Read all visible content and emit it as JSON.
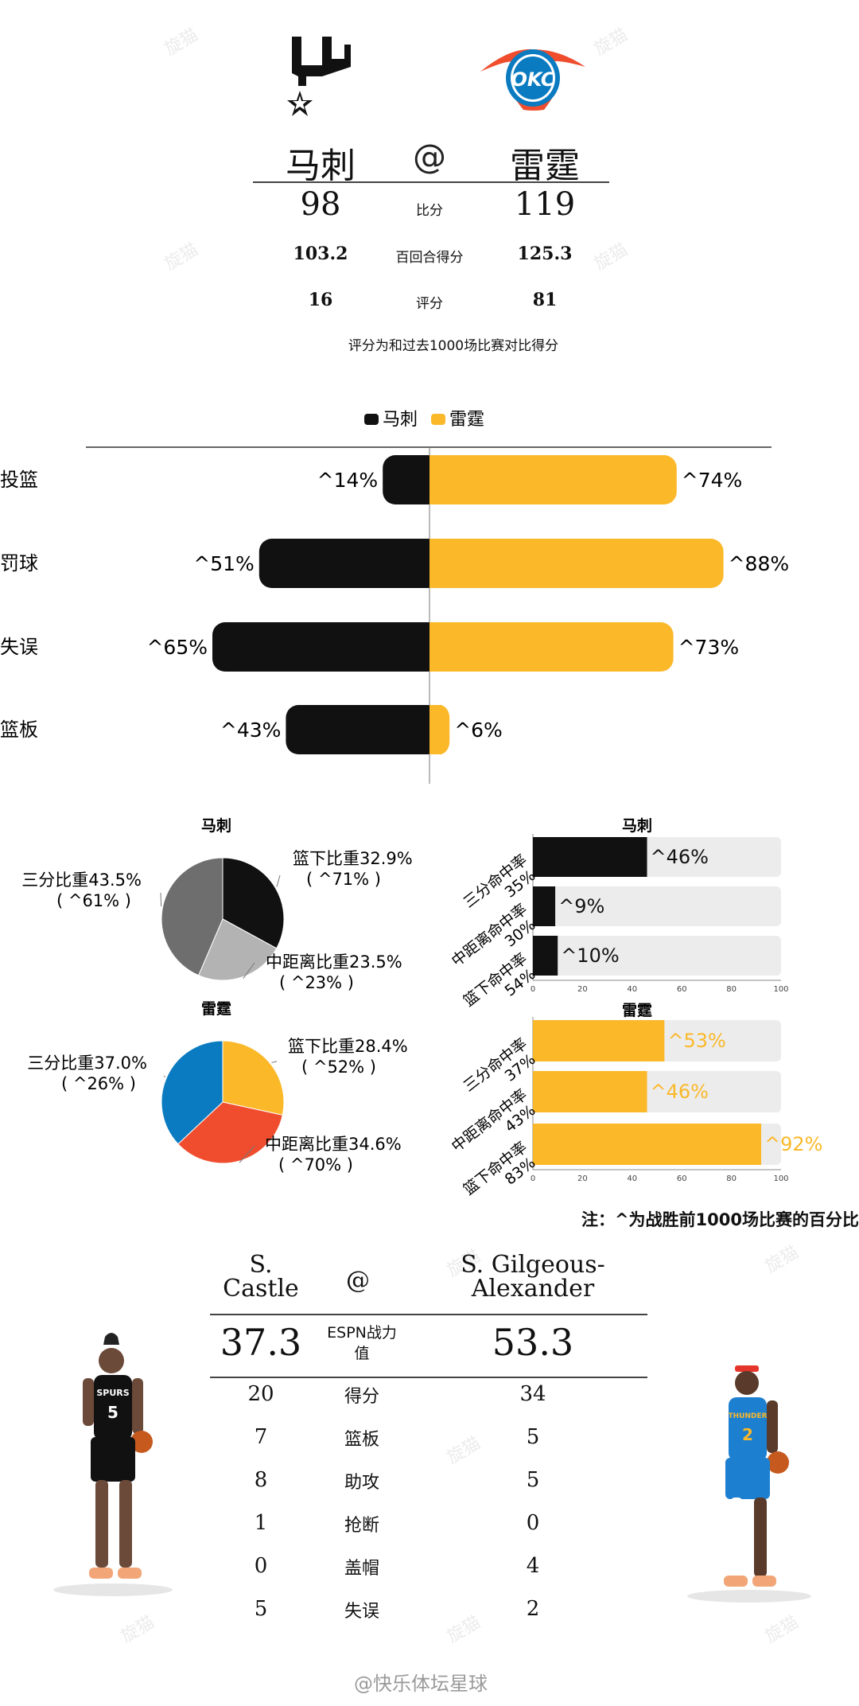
{
  "watermark": "旋猫",
  "header": {
    "team_a": "马刺",
    "team_b": "雷霆",
    "at": "@",
    "rows": [
      {
        "label": "比分",
        "a": "98",
        "b": "119"
      },
      {
        "label": "百回合得分",
        "a": "103.2",
        "b": "125.3"
      },
      {
        "label": "评分",
        "a": "16",
        "b": "81"
      }
    ],
    "note": "评分为和过去1000场比赛对比得分"
  },
  "colors": {
    "spurs": "#111111",
    "thunder": "#fbb829",
    "pie_three": "#6e6e6e",
    "pie_mid_spurs": "#b3b3b3",
    "okc_blue": "#0a7bc1",
    "okc_orange": "#ef4d2e",
    "track": "#ececec"
  },
  "pct_marker": "^",
  "chart_data": [
    {
      "type": "bar",
      "legend": [
        "马刺",
        "雷霆"
      ],
      "categories": [
        "投篮",
        "罚球",
        "失误",
        "篮板"
      ],
      "series": [
        {
          "name": "马刺",
          "values": [
            14,
            51,
            65,
            43
          ]
        },
        {
          "name": "雷霆",
          "values": [
            74,
            88,
            73,
            6
          ]
        }
      ],
      "labels_a": [
        "14%",
        "51%",
        "65%",
        "43%"
      ],
      "labels_b": [
        "74%",
        "88%",
        "73%",
        "6%"
      ]
    },
    {
      "type": "pie",
      "title": "马刺",
      "slices": [
        {
          "name": "篮下比重",
          "value": 32.9,
          "label": "篮下比重32.9%",
          "sub": "71%"
        },
        {
          "name": "中距离比重",
          "value": 23.5,
          "label": "中距离比重23.5%",
          "sub": "23%"
        },
        {
          "name": "三分比重",
          "value": 43.5,
          "label": "三分比重43.5%",
          "sub": "61%"
        }
      ]
    },
    {
      "type": "pie",
      "title": "雷霆",
      "slices": [
        {
          "name": "篮下比重",
          "value": 28.4,
          "label": "篮下比重28.4%",
          "sub": "52%"
        },
        {
          "name": "中距离比重",
          "value": 34.6,
          "label": "中距离比重34.6%",
          "sub": "70%"
        },
        {
          "name": "三分比重",
          "value": 37.0,
          "label": "三分比重37.0%",
          "sub": "26%"
        }
      ]
    },
    {
      "type": "bar",
      "title": "马刺",
      "categories": [
        "三分命中率",
        "中距离命中率",
        "篮下命中率"
      ],
      "rates": [
        "35%",
        "30%",
        "54%"
      ],
      "values": [
        46,
        9,
        10
      ],
      "labels": [
        "46%",
        "9%",
        "10%"
      ],
      "xlim": [
        0,
        100
      ],
      "xticks": [
        "0",
        "20",
        "40",
        "60",
        "80",
        "100"
      ]
    },
    {
      "type": "bar",
      "title": "雷霆",
      "categories": [
        "三分命中率",
        "中距离命中率",
        "篮下命中率"
      ],
      "rates": [
        "37%",
        "43%",
        "83%"
      ],
      "values": [
        53,
        46,
        92
      ],
      "labels": [
        "53%",
        "46%",
        "92%"
      ],
      "xlim": [
        0,
        100
      ],
      "xticks": [
        "0",
        "20",
        "40",
        "60",
        "80",
        "100"
      ]
    }
  ],
  "footnote": "注：^为战胜前1000场比赛的百分比",
  "players": {
    "a_name_line1": "S.",
    "a_name_line2": "Castle",
    "b_name_line1": "S. Gilgeous-",
    "b_name_line2": "Alexander",
    "at": "@",
    "power_label_line1": "ESPN战力",
    "power_label_line2": "值",
    "a_power": "37.3",
    "b_power": "53.3",
    "a_number": "5",
    "b_number": "2",
    "a_jersey": "SPURS",
    "b_jersey": "THUNDER",
    "stats": [
      {
        "label": "得分",
        "a": "20",
        "b": "34"
      },
      {
        "label": "篮板",
        "a": "7",
        "b": "5"
      },
      {
        "label": "助攻",
        "a": "8",
        "b": "5"
      },
      {
        "label": "抢断",
        "a": "1",
        "b": "0"
      },
      {
        "label": "盖帽",
        "a": "0",
        "b": "4"
      },
      {
        "label": "失误",
        "a": "5",
        "b": "2"
      }
    ]
  },
  "logos": {
    "b_text": "OKC"
  },
  "credit": "@快乐体坛星球"
}
